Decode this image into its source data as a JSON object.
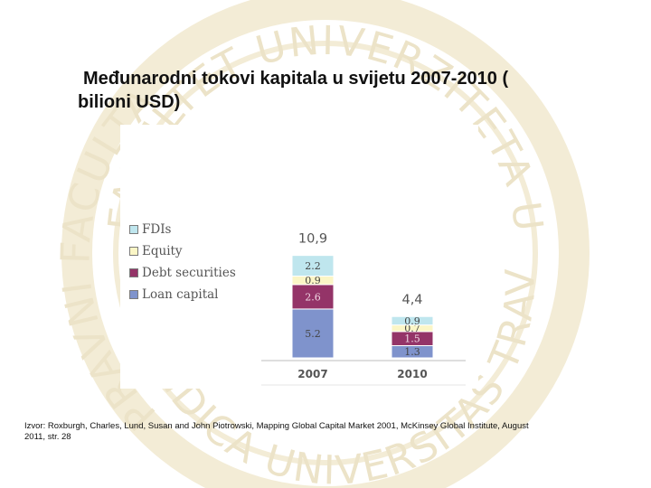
{
  "slide": {
    "title_line1": "Međunarodni tokovi kapitala u svijetu 2007-2010 (",
    "title_line2": "bilioni USD)",
    "source_line1": "Izvor: Roxburgh, Charles, Lund, Susan and John Piotrowski, Mapping Global Capital Market 2001, McKinsey Global Institute, August",
    "source_line2": "2011, str. 28"
  },
  "watermark": {
    "top_text": "FAKULTET UNIVERZITETA U TRAVNIKU",
    "left_text": "PRAVNI FACULTAS",
    "bottom_text": "IURIDICA UNIVERSITAS TRAVNIKENSIS",
    "color": "#ece3c8"
  },
  "chart_data": {
    "type": "bar",
    "stacked": true,
    "categories": [
      "2007",
      "2010"
    ],
    "totals": [
      "10,9",
      "4,4"
    ],
    "series": [
      {
        "name": "Loan capital",
        "values": [
          5.2,
          1.3
        ],
        "labels": [
          "5.2",
          "1.3"
        ],
        "color": "#7f93cc"
      },
      {
        "name": "Debt securities",
        "values": [
          2.6,
          1.5
        ],
        "labels": [
          "2.6",
          "1.5"
        ],
        "color": "#943468"
      },
      {
        "name": "Equity",
        "values": [
          0.9,
          0.7
        ],
        "labels": [
          "0.9",
          "0.7"
        ],
        "color": "#fbf6c6"
      },
      {
        "name": "FDIs",
        "values": [
          2.2,
          0.9
        ],
        "labels": [
          "2.2",
          "0.9"
        ],
        "color": "#bfe6ee"
      }
    ],
    "legend": [
      "FDIs",
      "Equity",
      "Debt securities",
      "Loan capital"
    ],
    "legend_placement": "left",
    "grid": false
  }
}
